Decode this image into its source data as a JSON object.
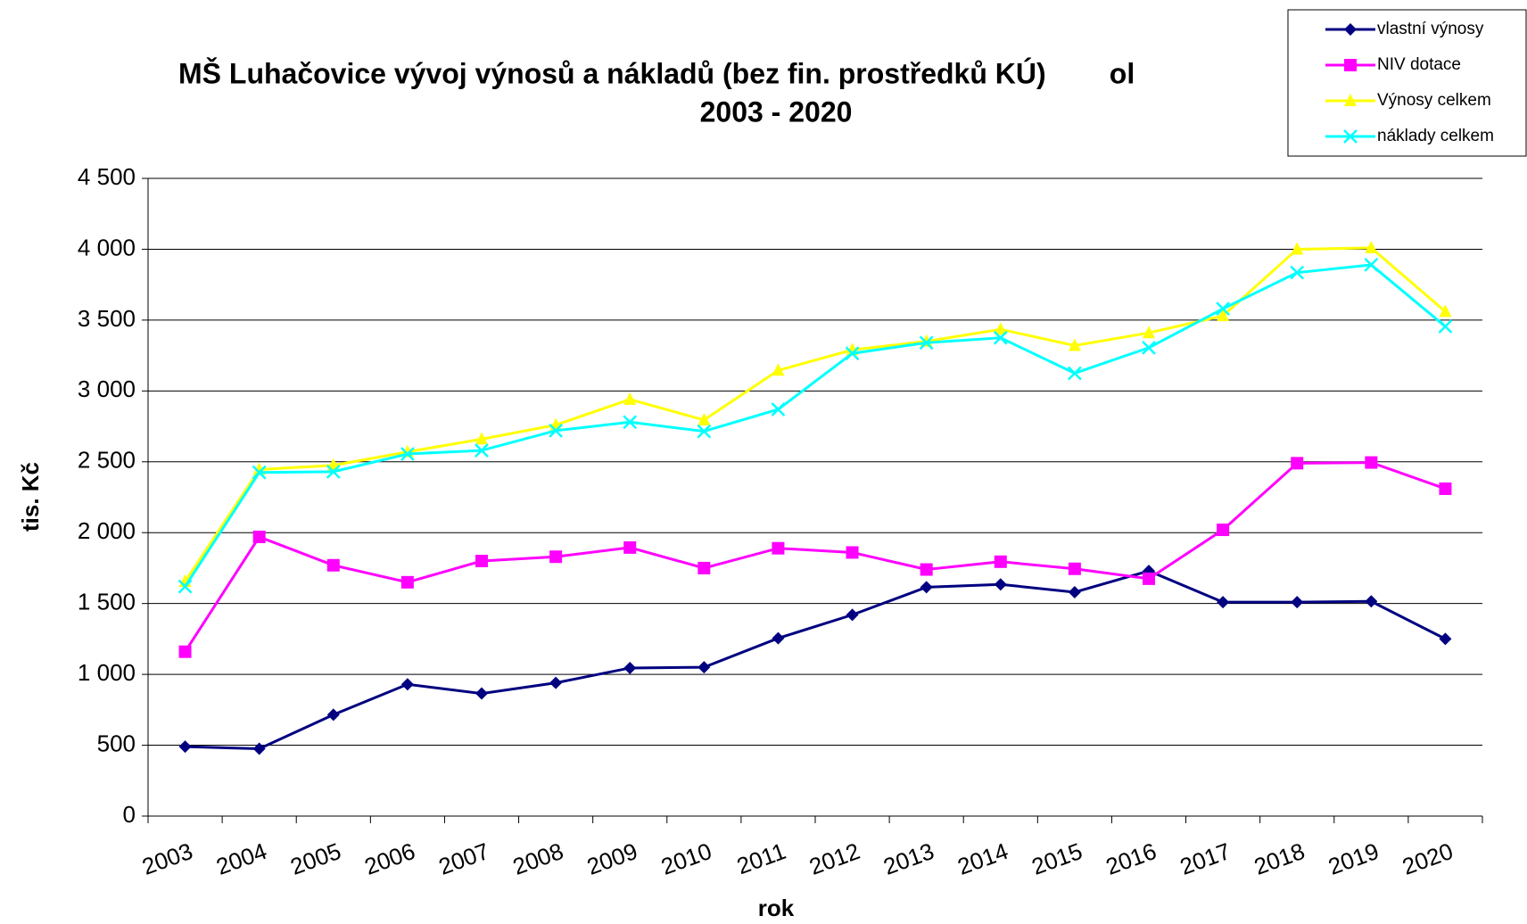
{
  "chart_data": {
    "type": "line",
    "title": "MŠ Luhačovice vývoj výnosů a nákladů (bez fin. prostředků KÚ)        ol",
    "subtitle": "2003 - 2020",
    "x_label": "rok",
    "y_label": "tis. Kč",
    "categories": [
      "2003",
      "2004",
      "2005",
      "2006",
      "2007",
      "2008",
      "2009",
      "2010",
      "2011",
      "2012",
      "2013",
      "2014",
      "2015",
      "2016",
      "2017",
      "2018",
      "2019",
      "2020"
    ],
    "series": [
      {
        "name": "vlastní výnosy",
        "color": "#000080",
        "marker": "diamond",
        "values": [
          490,
          475,
          715,
          930,
          865,
          940,
          1045,
          1050,
          1255,
          1420,
          1615,
          1635,
          1580,
          1730,
          1510,
          1510,
          1515,
          1250
        ]
      },
      {
        "name": "NIV dotace",
        "color": "#ff00ff",
        "marker": "square",
        "values": [
          1160,
          1970,
          1770,
          1650,
          1800,
          1830,
          1895,
          1750,
          1890,
          1860,
          1740,
          1795,
          1745,
          1675,
          2020,
          2490,
          2495,
          2310
        ]
      },
      {
        "name": "Výnosy celkem",
        "color": "#ffff00",
        "marker": "triangle",
        "values": [
          1655,
          2445,
          2475,
          2570,
          2660,
          2760,
          2940,
          2795,
          3145,
          3290,
          3350,
          3435,
          3320,
          3410,
          3530,
          4000,
          4010,
          3560
        ]
      },
      {
        "name": "náklady celkem",
        "color": "#00ffff",
        "marker": "x",
        "values": [
          1620,
          2425,
          2430,
          2555,
          2580,
          2720,
          2780,
          2715,
          2870,
          3265,
          3340,
          3375,
          3125,
          3305,
          3580,
          3835,
          3890,
          3455
        ]
      }
    ],
    "ylim": [
      0,
      4500
    ],
    "yticks": [
      0,
      500,
      {
        "value": 1000,
        "label": "1 000"
      },
      {
        "value": 1500,
        "label": "1 500"
      },
      {
        "value": 2000,
        "label": "2 000"
      },
      {
        "value": 2500,
        "label": "2 500"
      },
      {
        "value": 3000,
        "label": "3 000"
      },
      {
        "value": 3500,
        "label": "3 500"
      },
      {
        "value": 4000,
        "label": "4 000"
      },
      {
        "value": 4500,
        "label": "4 500"
      }
    ],
    "grid": true,
    "legend": "top-right"
  }
}
